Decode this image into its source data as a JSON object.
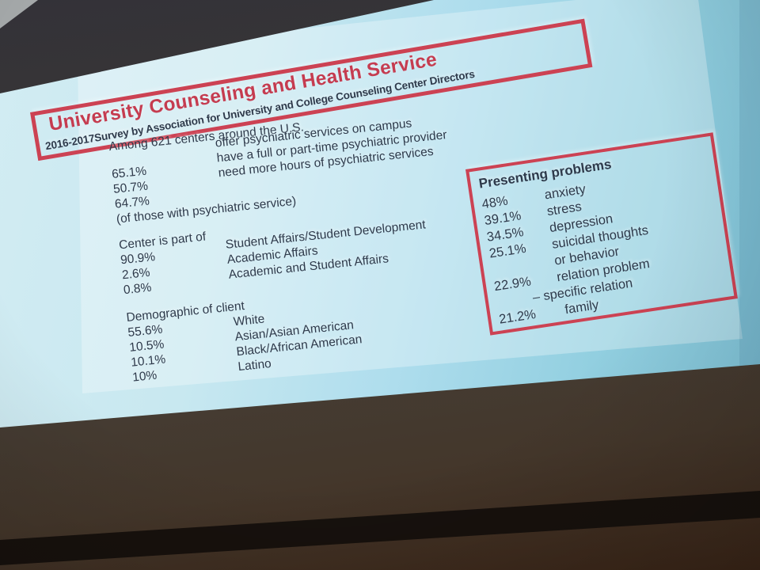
{
  "slide": {
    "title": "University Counseling and Health Service",
    "subtitle": "2016-2017Survey by Association for University and College Counseling Center Directors",
    "survey": {
      "heading": "Among 621 centers around the U.S.",
      "rows": [
        {
          "pct": "65.1%",
          "label": "offer psychiatric services on campus"
        },
        {
          "pct": "50.7%",
          "label": "have a full or part-time psychiatric provider"
        },
        {
          "pct": "64.7%",
          "label": "need more hours of psychiatric services"
        }
      ],
      "note": "(of those with psychiatric service)"
    },
    "center_part": {
      "heading": "Center is part of",
      "rows": [
        {
          "pct": "90.9%",
          "label": "Student Affairs/Student Development"
        },
        {
          "pct": "2.6%",
          "label": "Academic Affairs"
        },
        {
          "pct": "0.8%",
          "label": "Academic and Student Affairs"
        }
      ]
    },
    "demographic": {
      "heading": "Demographic of client",
      "rows": [
        {
          "pct": "55.6%",
          "label": "White"
        },
        {
          "pct": "10.5%",
          "label": "Asian/Asian American"
        },
        {
          "pct": "10.1%",
          "label": "Black/African American"
        },
        {
          "pct": "10%",
          "label": "Latino"
        }
      ]
    },
    "presenting": {
      "heading": "Presenting problems",
      "rows": [
        {
          "pct": "48%",
          "label": "anxiety"
        },
        {
          "pct": "39.1%",
          "label": "stress"
        },
        {
          "pct": "34.5%",
          "label": "depression"
        },
        {
          "pct": "25.1%",
          "label": "suicidal thoughts",
          "label2": "or behavior"
        },
        {
          "pct": "22.9%",
          "label": "relation problem",
          "label2": "– specific relation"
        },
        {
          "pct": "21.2%",
          "label": "family"
        }
      ]
    }
  },
  "colors": {
    "accent_red": "#cc4253",
    "title_red": "#c53c50",
    "slide_text": "#2e3a4b",
    "screen_blue_light": "#d2ecf3",
    "screen_blue_deep": "#7cc1d6",
    "wall_dark": "#3c3834",
    "ledge_dark": "#17110d"
  }
}
